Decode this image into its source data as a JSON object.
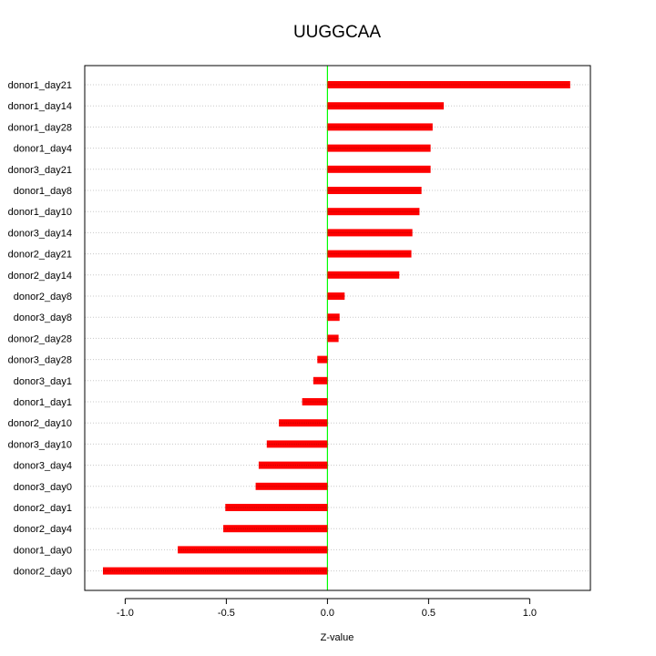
{
  "chart_data": {
    "type": "bar",
    "orientation": "horizontal",
    "title": "UUGGCAA",
    "xlabel": "Z-value",
    "ylabel": "",
    "categories": [
      "donor1_day21",
      "donor1_day14",
      "donor1_day28",
      "donor1_day4",
      "donor3_day21",
      "donor1_day8",
      "donor1_day10",
      "donor3_day14",
      "donor2_day21",
      "donor2_day14",
      "donor2_day8",
      "donor3_day8",
      "donor2_day28",
      "donor3_day28",
      "donor3_day1",
      "donor1_day1",
      "donor2_day10",
      "donor3_day10",
      "donor3_day4",
      "donor3_day0",
      "donor2_day1",
      "donor2_day4",
      "donor1_day0",
      "donor2_day0"
    ],
    "values": [
      1.2,
      0.575,
      0.52,
      0.51,
      0.51,
      0.465,
      0.455,
      0.42,
      0.415,
      0.355,
      0.085,
      0.06,
      0.055,
      -0.05,
      -0.07,
      -0.125,
      -0.24,
      -0.3,
      -0.34,
      -0.355,
      -0.505,
      -0.515,
      -0.74,
      -1.11
    ],
    "xlim": [
      -1.2,
      1.3
    ],
    "xticks": [
      "-1.0",
      "-0.5",
      "0.0",
      "0.5",
      "1.0"
    ],
    "xtick_values": [
      -1.0,
      -0.5,
      0.0,
      0.5,
      1.0
    ],
    "reference_line": 0,
    "grid": "horizontal dotted",
    "colors": {
      "bar": "#ff0000",
      "bar_stripe": "#c00000",
      "zero_line": "#00ff00",
      "grid": "#c8c8c8",
      "frame": "#000000"
    }
  }
}
